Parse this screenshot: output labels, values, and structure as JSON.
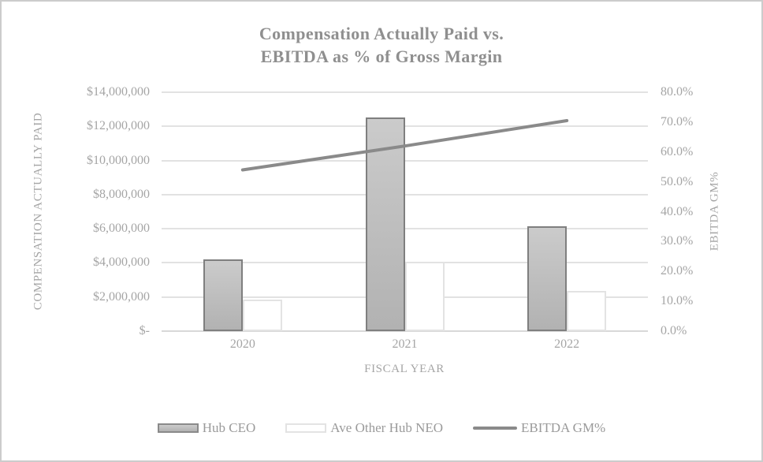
{
  "chart_data": {
    "type": "combo-bar-line",
    "title_lines": [
      "Compensation Actually Paid vs.",
      "EBITDA as % of Gross Margin"
    ],
    "categories": [
      "2020",
      "2021",
      "2022"
    ],
    "bar_series": [
      {
        "name": "Hub CEO",
        "values": [
          4200000,
          12500000,
          6150000
        ]
      },
      {
        "name": "Ave Other Hub NEO",
        "values": [
          1870000,
          4050000,
          2350000
        ]
      }
    ],
    "line_series": {
      "name": "EBITDA GM%",
      "values": [
        54.0,
        62.0,
        70.5
      ]
    },
    "primary_axis": {
      "title": "COMPENSATION ACTUALLY PAID",
      "min": 0,
      "max": 14000000,
      "tick_labels_top_to_bottom": [
        "$14,000,000",
        "$12,000,000",
        "$10,000,000",
        "$8,000,000",
        "$6,000,000",
        "$4,000,000",
        "$2,000,000",
        "$-"
      ]
    },
    "secondary_axis": {
      "title": "EBITDA GM%",
      "min": 0,
      "max": 80,
      "tick_labels_top_to_bottom": [
        "80.0%",
        "70.0%",
        "60.0%",
        "50.0%",
        "40.0%",
        "30.0%",
        "20.0%",
        "10.0%",
        "0.0%"
      ]
    },
    "x_axis": {
      "title": "FISCAL YEAR"
    },
    "legend_position": "bottom",
    "grid": true,
    "colors": {
      "ceo_bar_fill": "#bfbfbf",
      "ceo_bar_border": "#7f7f7f",
      "neo_bar_fill": "#ffffff",
      "neo_bar_border": "#e3e3e3",
      "line": "#8a8a8a",
      "gridline": "#e2e2e2",
      "title_text": "#8f8f8f",
      "axis_text": "#a5a5a5"
    }
  }
}
